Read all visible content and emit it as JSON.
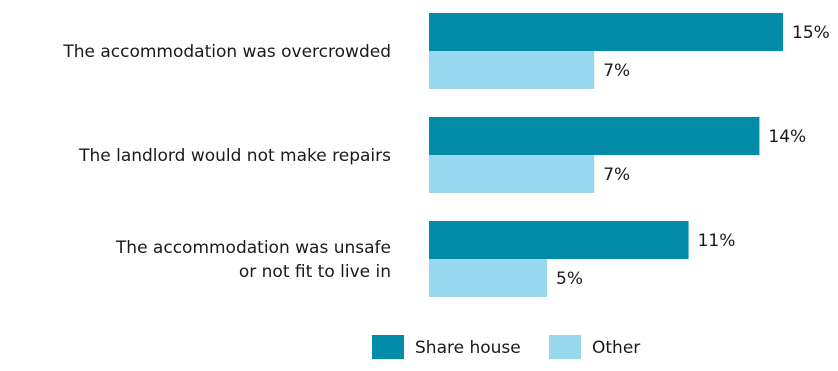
{
  "chart_data": {
    "type": "bar",
    "orientation": "horizontal",
    "categories": [
      [
        "The accommodation was overcrowded"
      ],
      [
        "The landlord would not make repairs"
      ],
      [
        "The accommodation was unsafe",
        "or not fit to live in"
      ]
    ],
    "series": [
      {
        "name": "Share house",
        "values": [
          15,
          14,
          11
        ],
        "color": "#008ba8"
      },
      {
        "name": "Other",
        "values": [
          7,
          7,
          5
        ],
        "color": "#97d8ee"
      }
    ],
    "value_labels": [
      [
        "15%",
        "14%",
        "11%"
      ],
      [
        "7%",
        "7%",
        "5%"
      ]
    ],
    "value_unit": "%",
    "title": "",
    "xlabel": "",
    "ylabel": "",
    "xlim": [
      0,
      15
    ],
    "grid": false,
    "legend": "bottom"
  }
}
